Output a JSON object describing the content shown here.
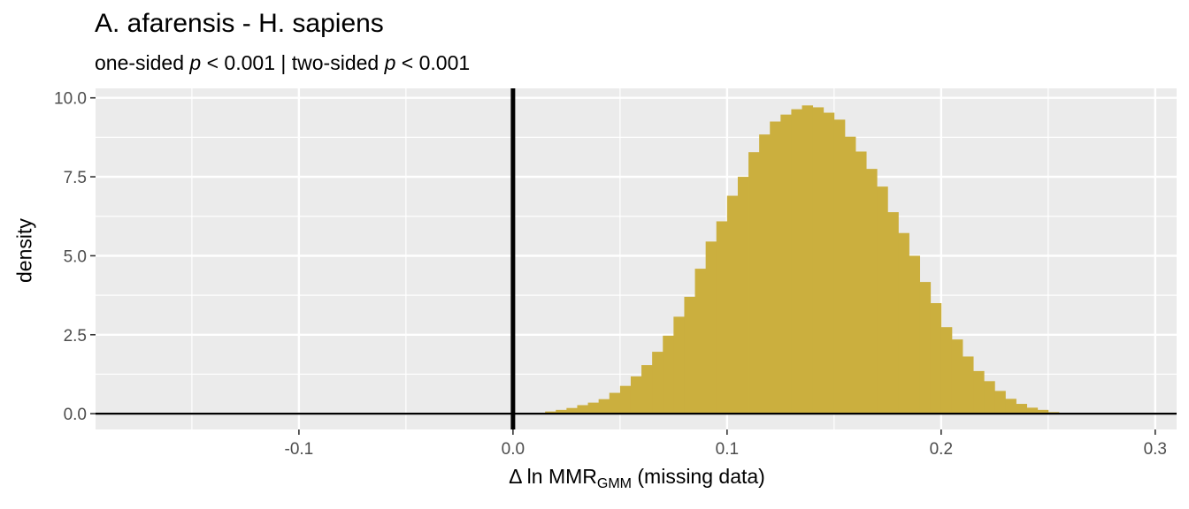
{
  "chart_data": {
    "type": "histogram",
    "title": "A. afarensis - H. sapiens",
    "subtitle": {
      "one_label": "one-sided",
      "p_symbol": "p",
      "one_value": "< 0.001",
      "separator": "|",
      "two_label": "two-sided",
      "two_value": "< 0.001"
    },
    "xlabel": {
      "prefix": "Δ ln MMR",
      "subscript": "GMM",
      "suffix": "(missing data)"
    },
    "ylabel": "density",
    "xlim": [
      -0.195,
      0.31
    ],
    "ylim": [
      -0.5,
      10.3
    ],
    "x_ticks": [
      -0.1,
      0.0,
      0.1,
      0.2,
      0.3
    ],
    "x_tick_labels": [
      "-0.1",
      "0.0",
      "0.1",
      "0.2",
      "0.3"
    ],
    "y_ticks": [
      0.0,
      2.5,
      5.0,
      7.5,
      10.0
    ],
    "y_tick_labels": [
      "0.0",
      "2.5",
      "5.0",
      "7.5",
      "10.0"
    ],
    "vline_x": 0.0,
    "hline_y": 0.0,
    "bar_color": "#CBAF3E",
    "panel_bg": "#EBEBEB",
    "grid": true,
    "bin_width": 0.005,
    "bins_start": [
      0.01,
      0.015,
      0.02,
      0.025,
      0.03,
      0.035,
      0.04,
      0.045,
      0.05,
      0.055,
      0.06,
      0.065,
      0.07,
      0.075,
      0.08,
      0.085,
      0.09,
      0.095,
      0.1,
      0.105,
      0.11,
      0.115,
      0.12,
      0.125,
      0.13,
      0.135,
      0.14,
      0.145,
      0.15,
      0.155,
      0.16,
      0.165,
      0.17,
      0.175,
      0.18,
      0.185,
      0.19,
      0.195,
      0.2,
      0.205,
      0.21,
      0.215,
      0.22,
      0.225,
      0.23,
      0.235,
      0.24,
      0.245,
      0.25,
      0.255
    ],
    "density": [
      0.03,
      0.07,
      0.12,
      0.18,
      0.27,
      0.35,
      0.46,
      0.66,
      0.88,
      1.18,
      1.54,
      1.96,
      2.47,
      3.07,
      3.7,
      4.59,
      5.45,
      6.09,
      6.9,
      7.5,
      8.28,
      8.84,
      9.25,
      9.47,
      9.64,
      9.76,
      9.7,
      9.53,
      9.31,
      8.77,
      8.3,
      7.75,
      7.19,
      6.38,
      5.72,
      5.0,
      4.17,
      3.5,
      2.74,
      2.35,
      1.81,
      1.35,
      1.03,
      0.72,
      0.47,
      0.31,
      0.19,
      0.12,
      0.05,
      0.02
    ]
  }
}
